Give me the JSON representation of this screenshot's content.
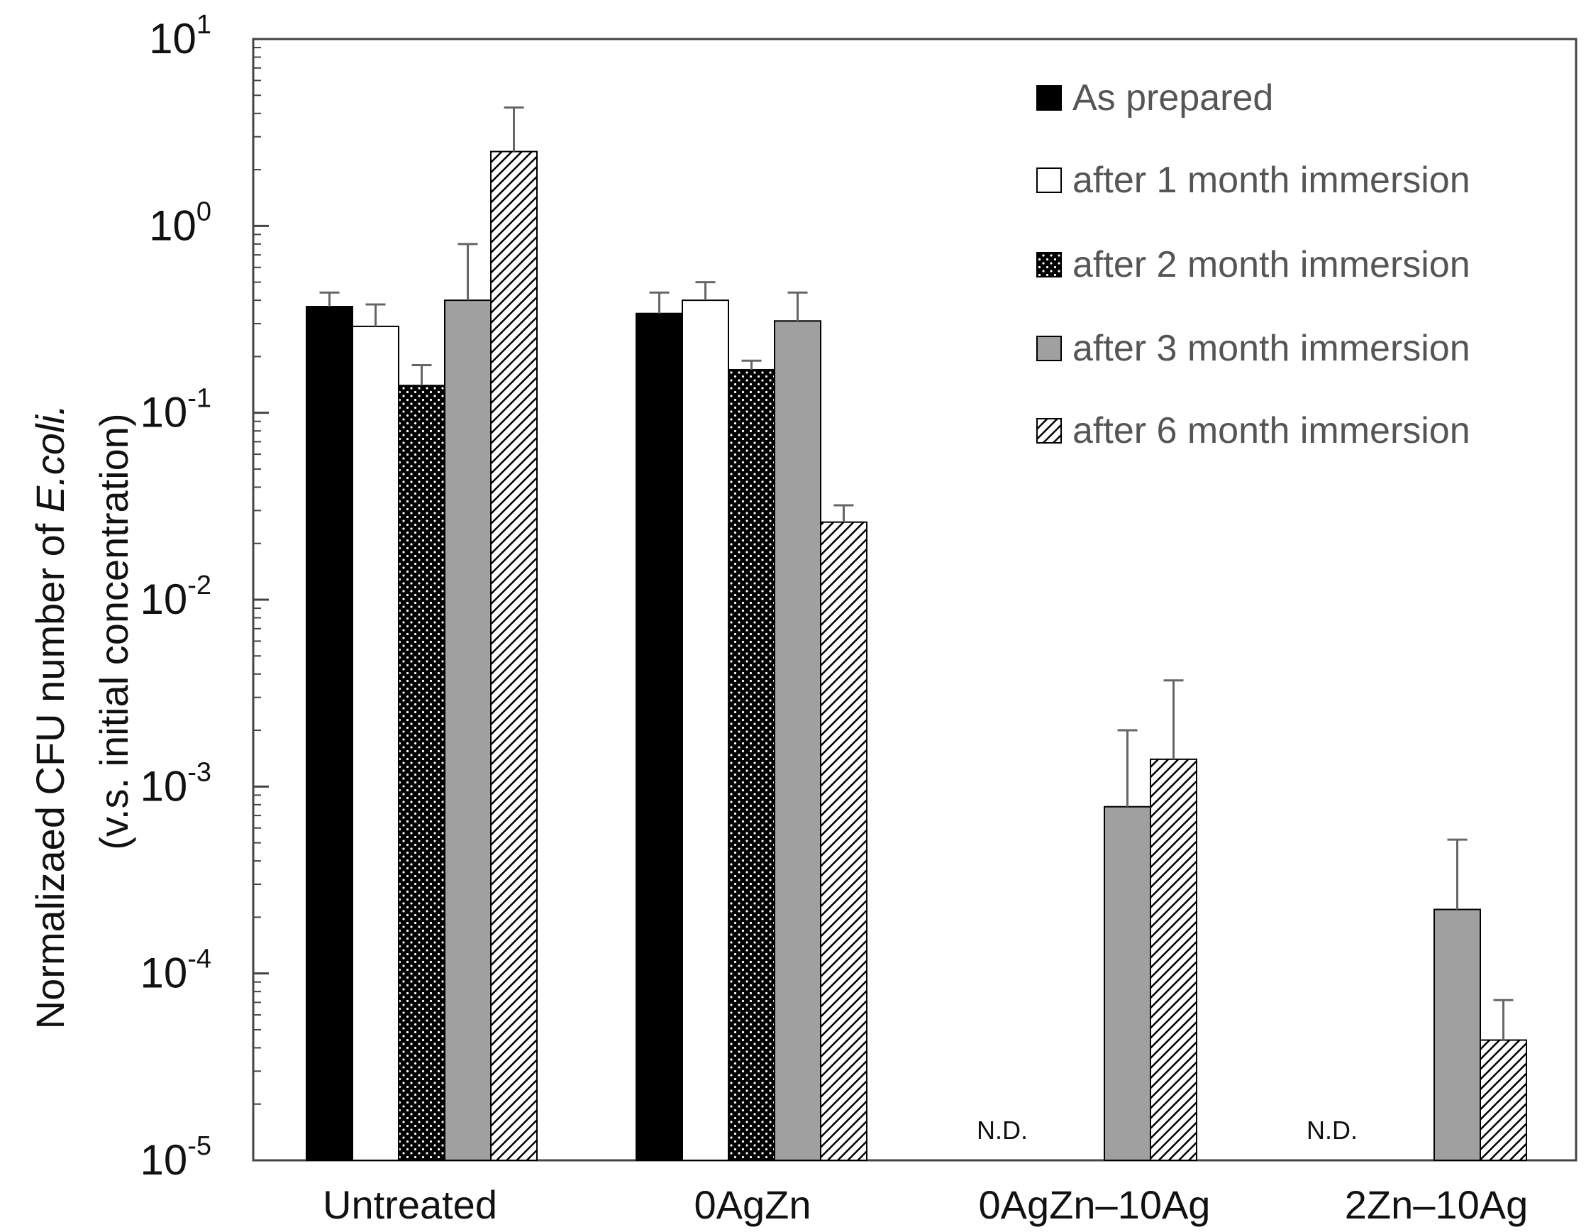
{
  "chart_data": {
    "type": "bar",
    "yscale": "log",
    "title": "",
    "xlabel": "",
    "ylabel": {
      "line1_prefix": "Normalizaed CFU number of ",
      "line1_italic": "E.coli.",
      "line2": "(v.s. initial concentration)"
    },
    "ylim": [
      1e-05,
      10
    ],
    "ytick_labels": [
      {
        "base": "10",
        "exp": "-5"
      },
      {
        "base": "10",
        "exp": "-4"
      },
      {
        "base": "10",
        "exp": "-3"
      },
      {
        "base": "10",
        "exp": "-2"
      },
      {
        "base": "10",
        "exp": "-1"
      },
      {
        "base": "10",
        "exp": "0"
      },
      {
        "base": "10",
        "exp": "1"
      }
    ],
    "categories": [
      "Untreated",
      "0AgZn",
      "0AgZn–10Ag",
      "2Zn–10Ag"
    ],
    "series": [
      {
        "name": "As prepared",
        "pattern": "solid-black",
        "values": [
          0.37,
          0.34,
          null,
          null
        ],
        "errors_upper": [
          0.44,
          0.44,
          null,
          null
        ]
      },
      {
        "name": "after 1 month immersion",
        "pattern": "white",
        "values": [
          0.29,
          0.4,
          null,
          null
        ],
        "errors_upper": [
          0.38,
          0.5,
          null,
          null
        ]
      },
      {
        "name": "after 2 month immersion",
        "pattern": "dotted-black",
        "values": [
          0.14,
          0.17,
          null,
          null
        ],
        "errors_upper": [
          0.18,
          0.19,
          null,
          null
        ]
      },
      {
        "name": "after 3 month immersion",
        "pattern": "gray",
        "values": [
          0.4,
          0.31,
          0.00078,
          0.00022
        ],
        "errors_upper": [
          0.8,
          0.44,
          0.002,
          0.00052
        ]
      },
      {
        "name": "after 6 month immersion",
        "pattern": "hatched",
        "values": [
          2.5,
          0.026,
          0.0014,
          4.4e-05
        ],
        "errors_upper": [
          4.3,
          0.032,
          0.0037,
          7.2e-05
        ]
      }
    ],
    "annotations": [
      {
        "category_index": 2,
        "text": "N.D."
      },
      {
        "category_index": 3,
        "text": "N.D."
      }
    ],
    "legend": "top-right",
    "grid": false
  },
  "colors": {
    "black": "#000000",
    "gray": "#a0a0a0",
    "axis": "#444444",
    "legend_text": "#555555"
  }
}
